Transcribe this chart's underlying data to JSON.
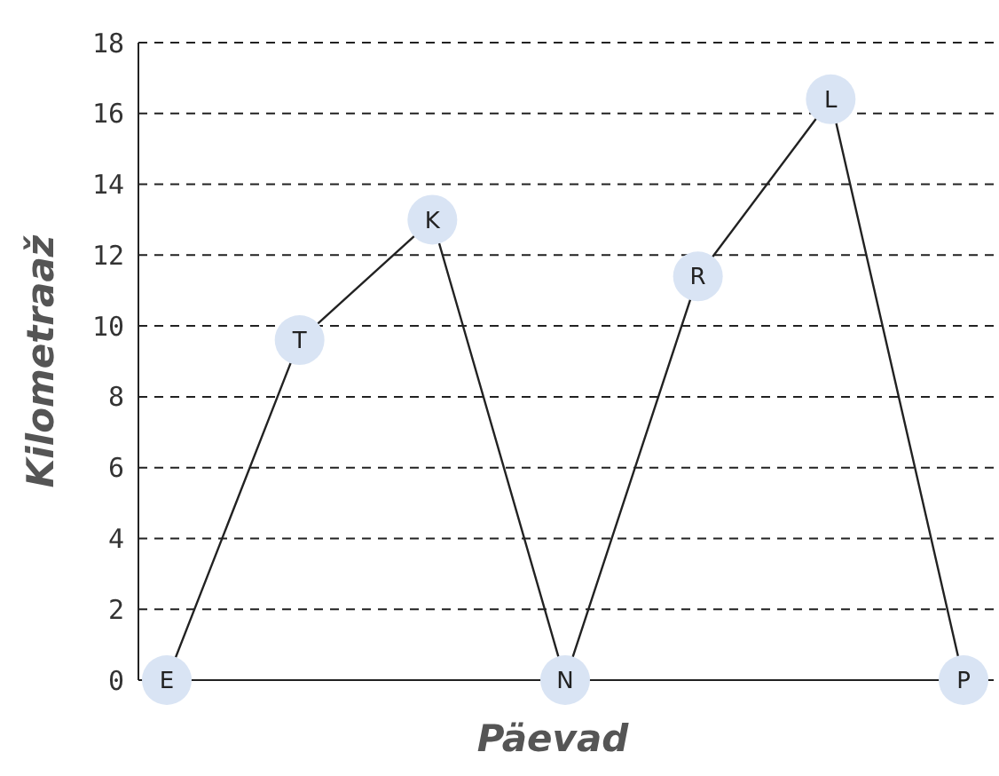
{
  "chart_data": {
    "type": "line",
    "xlabel": "Päevad",
    "ylabel": "Kilometraaž",
    "categories": [
      "E",
      "T",
      "K",
      "N",
      "R",
      "L",
      "P"
    ],
    "series": [
      {
        "color": "#222222",
        "values": [
          0,
          9.6,
          13,
          0,
          11.4,
          16.4,
          0
        ]
      }
    ],
    "ylim": [
      0,
      18
    ],
    "yticks": [
      0,
      2,
      4,
      6,
      8,
      10,
      12,
      14,
      16,
      18
    ],
    "grid": "y",
    "marker": "circle",
    "line_style": "solid"
  }
}
